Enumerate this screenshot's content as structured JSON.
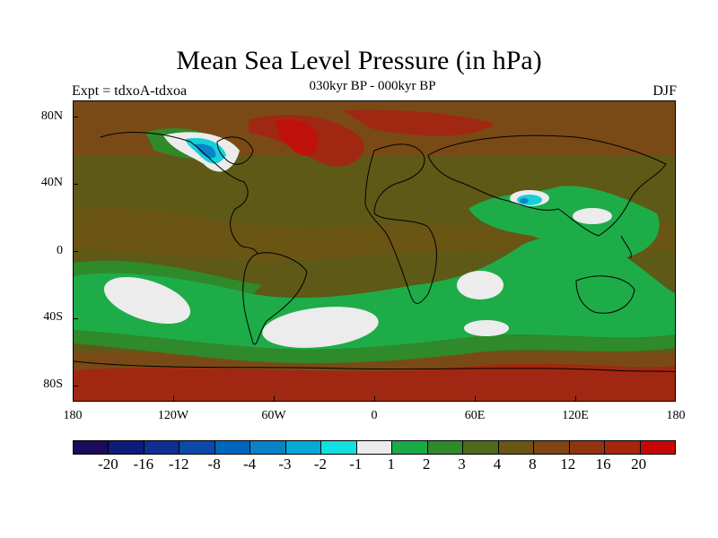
{
  "title": "Mean Sea Level Pressure (in hPa)",
  "subtitle": "030kyr BP - 000kyr BP",
  "left_label": "Expt = tdxoA-tdxoa",
  "right_label": "DJF",
  "lat_labels": [
    "80N",
    "40N",
    "0",
    "40S",
    "80S"
  ],
  "lon_labels": [
    "180",
    "120W",
    "60W",
    "0",
    "60E",
    "120E",
    "180"
  ],
  "colorbar": {
    "colors": [
      "#1c0a5c",
      "#0f1b7a",
      "#102e92",
      "#0b4aa8",
      "#0066bd",
      "#0a82c8",
      "#06a8d6",
      "#12e0e0",
      "#ececec",
      "#1aaa48",
      "#2e8a2a",
      "#4e6a1a",
      "#6a5514",
      "#7f4514",
      "#903510",
      "#a8250c",
      "#c80608"
    ],
    "labels": [
      "-20",
      "-16",
      "-12",
      "-8",
      "-4",
      "-3",
      "-2",
      "-1",
      "1",
      "2",
      "3",
      "4",
      "8",
      "12",
      "16",
      "20"
    ]
  },
  "field_colors": {
    "background": "#5e5916",
    "brown": "#7a4a16",
    "darkred": "#a02812",
    "red": "#c0100c",
    "green_dark": "#2e8a2a",
    "green": "#1eac48",
    "white": "#ececec",
    "cyan": "#16d0d8",
    "blue": "#0a82c8",
    "coast": "#000000"
  }
}
